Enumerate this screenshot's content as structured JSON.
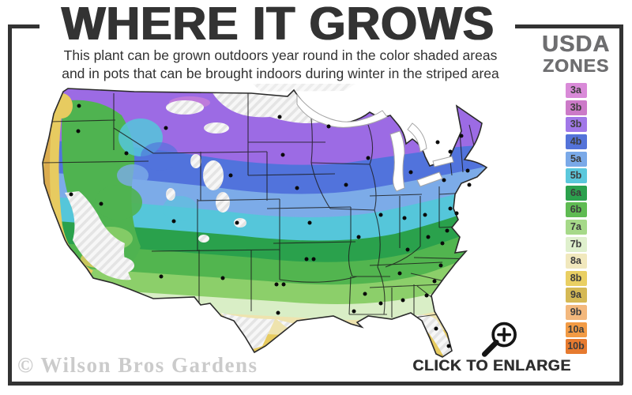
{
  "header": {
    "title": "WHERE IT GROWS",
    "subtitle_line1": "This plant can be grown outdoors year round in the color shaded areas",
    "subtitle_line2": "and in pots that can be brought indoors during winter in the striped area"
  },
  "legend": {
    "title_line1": "USDA",
    "title_line2": "ZONES",
    "zones": [
      {
        "label": "3a",
        "color": "#d98ad8"
      },
      {
        "label": "3b",
        "color": "#cc7ac8"
      },
      {
        "label": "3b",
        "color": "#a178e8"
      },
      {
        "label": "4b",
        "color": "#5473d9"
      },
      {
        "label": "5a",
        "color": "#7aa9e8"
      },
      {
        "label": "5b",
        "color": "#5bc8dc"
      },
      {
        "label": "6a",
        "color": "#2ba14d"
      },
      {
        "label": "6b",
        "color": "#5fbb52"
      },
      {
        "label": "7a",
        "color": "#a6d989"
      },
      {
        "label": "7b",
        "color": "#dff0cd"
      },
      {
        "label": "8a",
        "color": "#f1e8bd"
      },
      {
        "label": "8b",
        "color": "#e9cf63"
      },
      {
        "label": "9a",
        "color": "#d5b955"
      },
      {
        "label": "9b",
        "color": "#f3b87d"
      },
      {
        "label": "10a",
        "color": "#f29b45"
      },
      {
        "label": "10b",
        "color": "#e67a2f"
      }
    ]
  },
  "map": {
    "watermark": "© Wilson Bros Gardens"
  },
  "enlarge": {
    "label": "CLICK TO ENLARGE"
  },
  "colors": {
    "frame": "#333333",
    "title_text": "#333333",
    "legend_title_text": "#6e6e70",
    "watermark_text": "#cbcbcb"
  }
}
